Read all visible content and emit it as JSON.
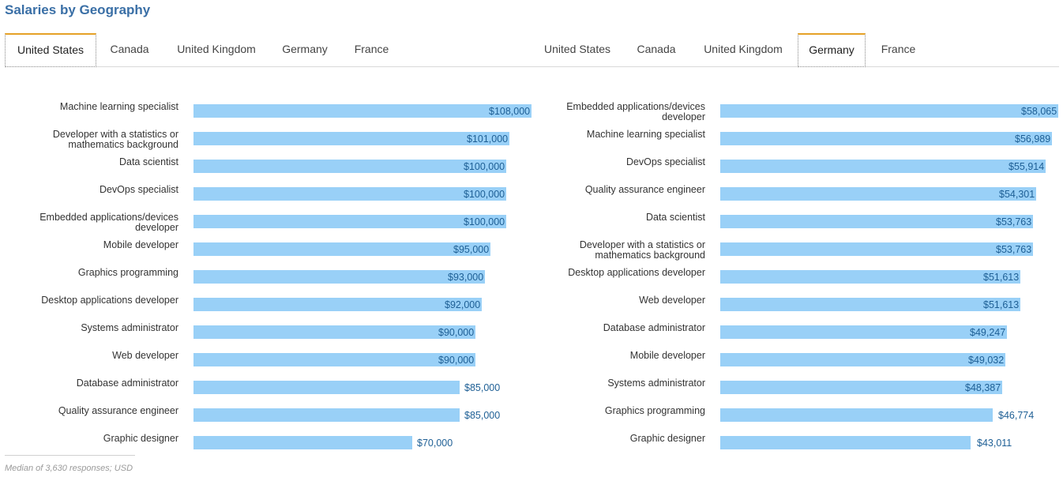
{
  "title": "Salaries by Geography",
  "footnote": "Median of 3,630 responses; USD",
  "colors": {
    "bar": "#99d0f7",
    "value_text": "#1e5f95",
    "title": "#3a6fa6",
    "active_tab_accent": "#e5a126"
  },
  "tabs": [
    "United States",
    "Canada",
    "United Kingdom",
    "Germany",
    "France"
  ],
  "chart_data": [
    {
      "type": "bar",
      "orientation": "horizontal",
      "active_tab": "United States",
      "categories": [
        "Machine learning specialist",
        "Developer with a statistics or\nmathematics background",
        "Data scientist",
        "DevOps specialist",
        "Embedded applications/devices\ndeveloper",
        "Mobile developer",
        "Graphics programming",
        "Desktop applications developer",
        "Systems administrator",
        "Web developer",
        "Database administrator",
        "Quality assurance engineer",
        "Graphic designer"
      ],
      "values": [
        108000,
        101000,
        100000,
        100000,
        100000,
        95000,
        93000,
        92000,
        90000,
        90000,
        85000,
        85000,
        70000
      ],
      "value_labels": [
        "$108,000",
        "$101,000",
        "$100,000",
        "$100,000",
        "$100,000",
        "$95,000",
        "$93,000",
        "$92,000",
        "$90,000",
        "$90,000",
        "$85,000",
        "$85,000",
        "$70,000"
      ],
      "xlim": [
        0,
        108000
      ]
    },
    {
      "type": "bar",
      "orientation": "horizontal",
      "active_tab": "Germany",
      "categories": [
        "Embedded applications/devices\ndeveloper",
        "Machine learning specialist",
        "DevOps specialist",
        "Quality assurance engineer",
        "Data scientist",
        "Developer with a statistics or\nmathematics background",
        "Desktop applications developer",
        "Web developer",
        "Database administrator",
        "Mobile developer",
        "Systems administrator",
        "Graphics programming",
        "Graphic designer"
      ],
      "values": [
        58065,
        56989,
        55914,
        54301,
        53763,
        53763,
        51613,
        51613,
        49247,
        49032,
        48387,
        46774,
        43011
      ],
      "value_labels": [
        "$58,065",
        "$56,989",
        "$55,914",
        "$54,301",
        "$53,763",
        "$53,763",
        "$51,613",
        "$51,613",
        "$49,247",
        "$49,032",
        "$48,387",
        "$46,774",
        "$43,011"
      ],
      "xlim": [
        0,
        58065
      ]
    }
  ]
}
